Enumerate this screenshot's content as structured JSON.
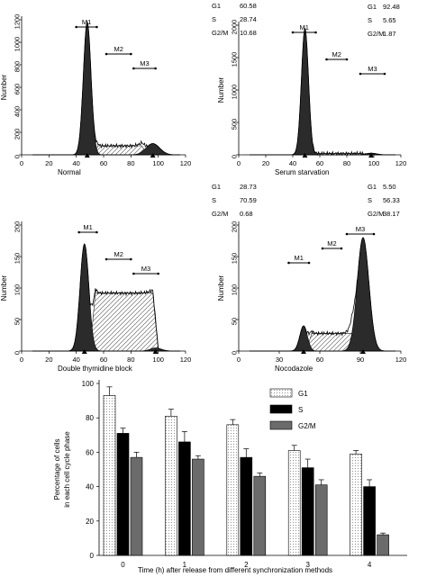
{
  "chart_data": [
    {
      "type": "histogram",
      "xlabel": "Normal",
      "ylabel": "Number",
      "xlim": [
        0,
        120
      ],
      "ylim": [
        0,
        1200
      ],
      "xticks": [
        0,
        20,
        40,
        60,
        80,
        100,
        120
      ],
      "yticks": [
        0,
        200,
        400,
        600,
        800,
        1000,
        1200
      ],
      "markers": [
        {
          "name": "M1",
          "from": 40,
          "to": 55
        },
        {
          "name": "M2",
          "from": 62,
          "to": 80
        },
        {
          "name": "M3",
          "from": 82,
          "to": 98
        }
      ],
      "phases": [
        {
          "name": "G1",
          "value": "60.58"
        },
        {
          "name": "S",
          "value": "28.74"
        },
        {
          "name": "G2/M",
          "value": "10.68"
        }
      ],
      "peaks": {
        "g1_mean": 48,
        "g1_sd": 2.8,
        "g1_height": 1180,
        "g2_mean": 96,
        "g2_sd": 5,
        "g2_height": 100,
        "s_level": 80,
        "s_from": 52,
        "s_to": 92
      }
    },
    {
      "type": "histogram",
      "xlabel": "Serum starvation",
      "ylabel": "Number",
      "xlim": [
        0,
        120
      ],
      "ylim": [
        0,
        2000
      ],
      "xticks": [
        0,
        20,
        40,
        60,
        80,
        100,
        120
      ],
      "yticks": [
        0,
        500,
        1000,
        1500,
        2000
      ],
      "markers": [
        {
          "name": "M1",
          "from": 40,
          "to": 57
        },
        {
          "name": "M2",
          "from": 65,
          "to": 80
        },
        {
          "name": "M3",
          "from": 90,
          "to": 108
        }
      ],
      "phases": [
        {
          "name": "G1",
          "value": "92.48"
        },
        {
          "name": "S",
          "value": "5.65"
        },
        {
          "name": "G2/M",
          "value": "1.87"
        }
      ],
      "peaks": {
        "g1_mean": 49,
        "g1_sd": 2.6,
        "g1_height": 1950,
        "g2_mean": 98,
        "g2_sd": 4,
        "g2_height": 25,
        "s_level": 20,
        "s_from": 54,
        "s_to": 94
      }
    },
    {
      "type": "histogram",
      "xlabel": "Double thymidine block",
      "ylabel": "Number",
      "xlim": [
        0,
        120
      ],
      "ylim": [
        0,
        200
      ],
      "xticks": [
        0,
        20,
        40,
        60,
        80,
        100,
        120
      ],
      "yticks": [
        0,
        50,
        100,
        150,
        200
      ],
      "markers": [
        {
          "name": "M1",
          "from": 42,
          "to": 55
        },
        {
          "name": "M2",
          "from": 62,
          "to": 80
        },
        {
          "name": "M3",
          "from": 82,
          "to": 100
        }
      ],
      "phases": [
        {
          "name": "G1",
          "value": "28.73"
        },
        {
          "name": "S",
          "value": "70.59"
        },
        {
          "name": "G2/M",
          "value": "0.68"
        }
      ],
      "peaks": {
        "g1_mean": 46,
        "g1_sd": 3.2,
        "g1_height": 170,
        "g2_mean": 98,
        "g2_sd": 4,
        "g2_height": 5,
        "s_level": 92,
        "s_from": 50,
        "s_to": 100
      }
    },
    {
      "type": "histogram",
      "xlabel": "Nocodazole",
      "ylabel": "Number",
      "xlim": [
        0,
        120
      ],
      "ylim": [
        0,
        200
      ],
      "xticks": [
        0,
        30,
        60,
        90,
        120
      ],
      "yticks": [
        0,
        50,
        100,
        150,
        200
      ],
      "markers": [
        {
          "name": "M1",
          "from": 37,
          "to": 52
        },
        {
          "name": "M2",
          "from": 62,
          "to": 76
        },
        {
          "name": "M3",
          "from": 80,
          "to": 100
        }
      ],
      "phases": [
        {
          "name": "G1",
          "value": "5.50"
        },
        {
          "name": "S",
          "value": "56.33"
        },
        {
          "name": "G2/M",
          "value": "38.17"
        }
      ],
      "peaks": {
        "g1_mean": 48,
        "g1_sd": 2.8,
        "g1_height": 40,
        "g2_mean": 92,
        "g2_sd": 4.3,
        "g2_height": 180,
        "s_level": 28,
        "s_from": 50,
        "s_to": 88
      }
    },
    {
      "type": "bar",
      "title": "",
      "xlabel": "Time (h) after release from different synchronization methods",
      "ylabel": "Percentage of cells in each cell cycle phase",
      "categories": [
        "0",
        "1",
        "2",
        "3",
        "4"
      ],
      "ylim": [
        0,
        100
      ],
      "yticks": [
        0,
        20,
        40,
        60,
        80,
        100
      ],
      "legend_position": "top-right",
      "series": [
        {
          "name": "G1",
          "values": [
            93,
            81,
            76,
            61,
            59
          ],
          "errors": [
            5,
            4,
            3,
            3,
            2
          ],
          "color": "#f4f4f4"
        },
        {
          "name": "S",
          "values": [
            71,
            66,
            57,
            51,
            40
          ],
          "errors": [
            3,
            6,
            5,
            5,
            4
          ],
          "color": "#000000"
        },
        {
          "name": "G2/M",
          "values": [
            57,
            56,
            46,
            41,
            12
          ],
          "errors": [
            3,
            2,
            2,
            3,
            1
          ],
          "color": "#6b6b6b"
        }
      ]
    }
  ]
}
